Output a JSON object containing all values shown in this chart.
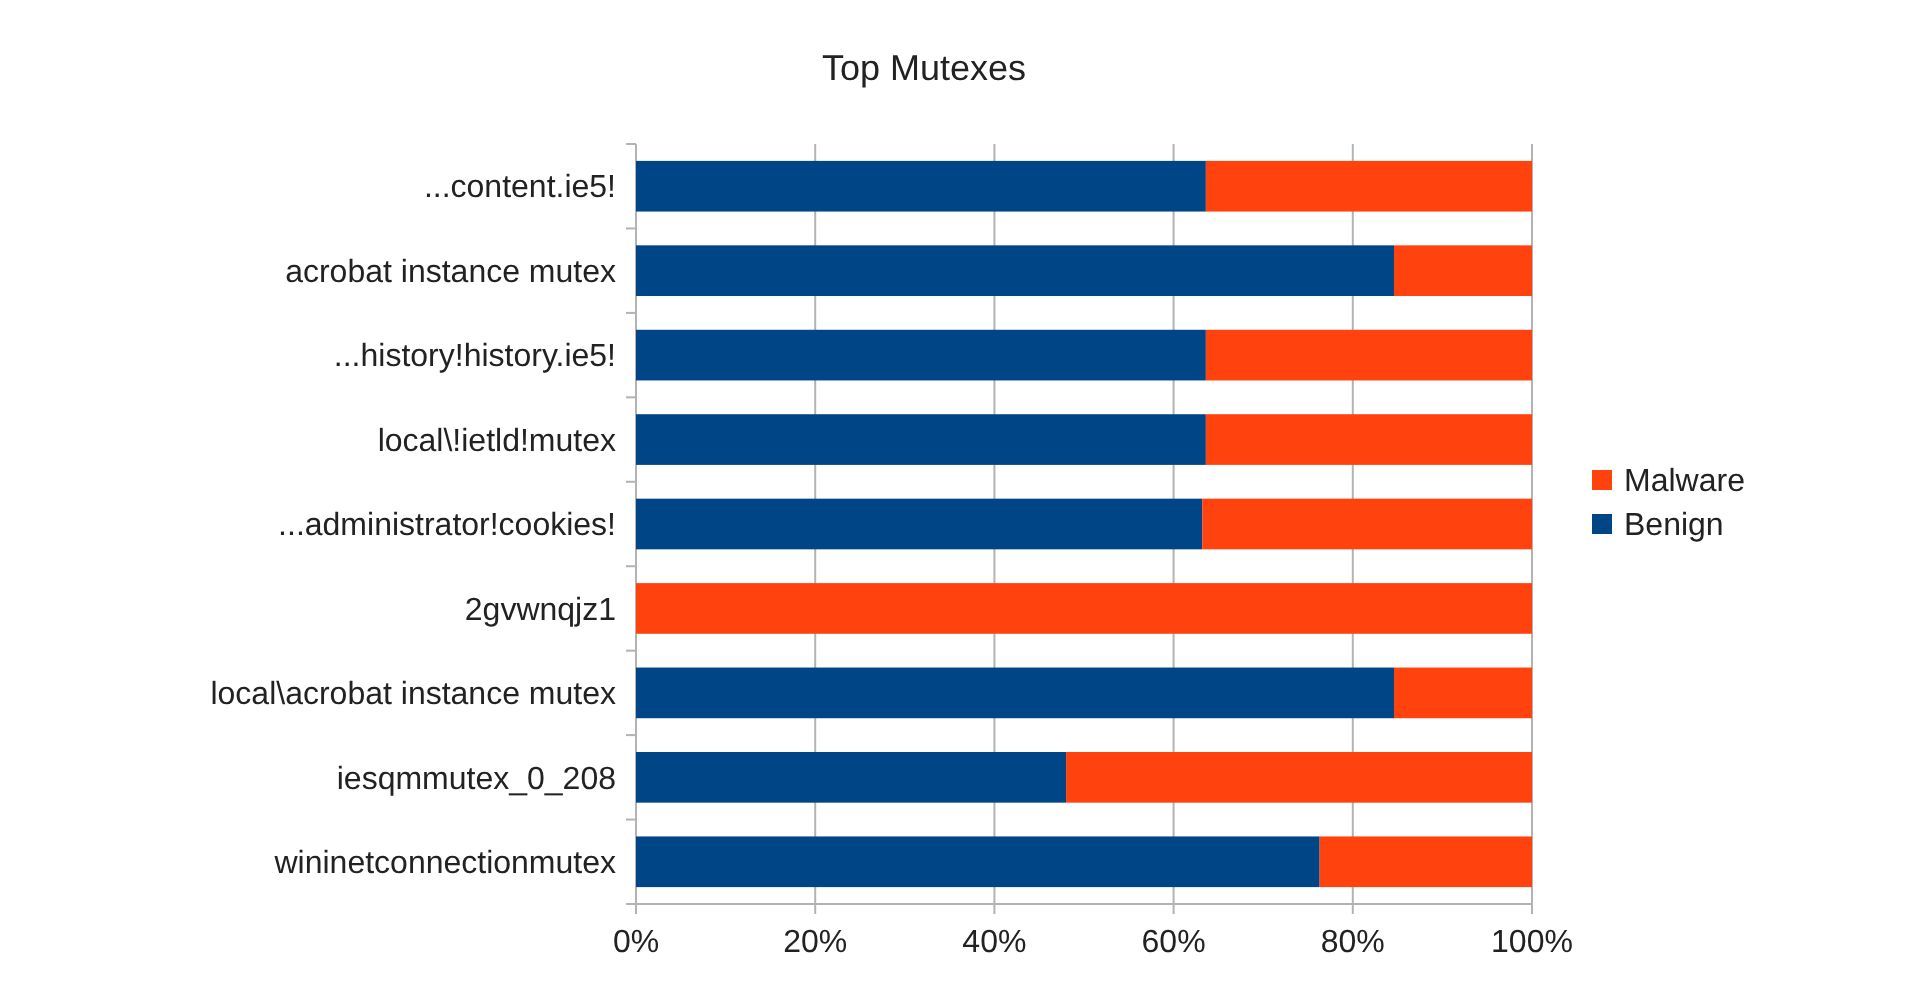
{
  "chart_data": {
    "type": "bar",
    "orientation": "horizontal",
    "stacked": true,
    "title": "Top Mutexes",
    "categories": [
      "...content.ie5!",
      "acrobat instance mutex",
      "...history!history.ie5!",
      "local\\!ietld!mutex",
      "...administrator!cookies!",
      "2gvwnqjz1",
      "local\\acrobat instance mutex",
      "iesqmmutex_0_208",
      "wininetconnectionmutex"
    ],
    "series": [
      {
        "name": "Benign",
        "color": "#004586",
        "values": [
          63.6,
          84.6,
          63.6,
          63.6,
          63.2,
          0,
          84.6,
          48,
          76.3
        ]
      },
      {
        "name": "Malware",
        "color": "#ff420e",
        "values": [
          36.4,
          15.4,
          36.4,
          36.4,
          36.8,
          100,
          15.4,
          52,
          23.7
        ]
      }
    ],
    "xlim": [
      0,
      100
    ],
    "xticks": [
      {
        "value": 0,
        "label": "0%"
      },
      {
        "value": 20,
        "label": "20%"
      },
      {
        "value": 40,
        "label": "40%"
      },
      {
        "value": 60,
        "label": "60%"
      },
      {
        "value": 80,
        "label": "80%"
      },
      {
        "value": 100,
        "label": "100%"
      }
    ],
    "grid": "x",
    "legend": "right"
  }
}
